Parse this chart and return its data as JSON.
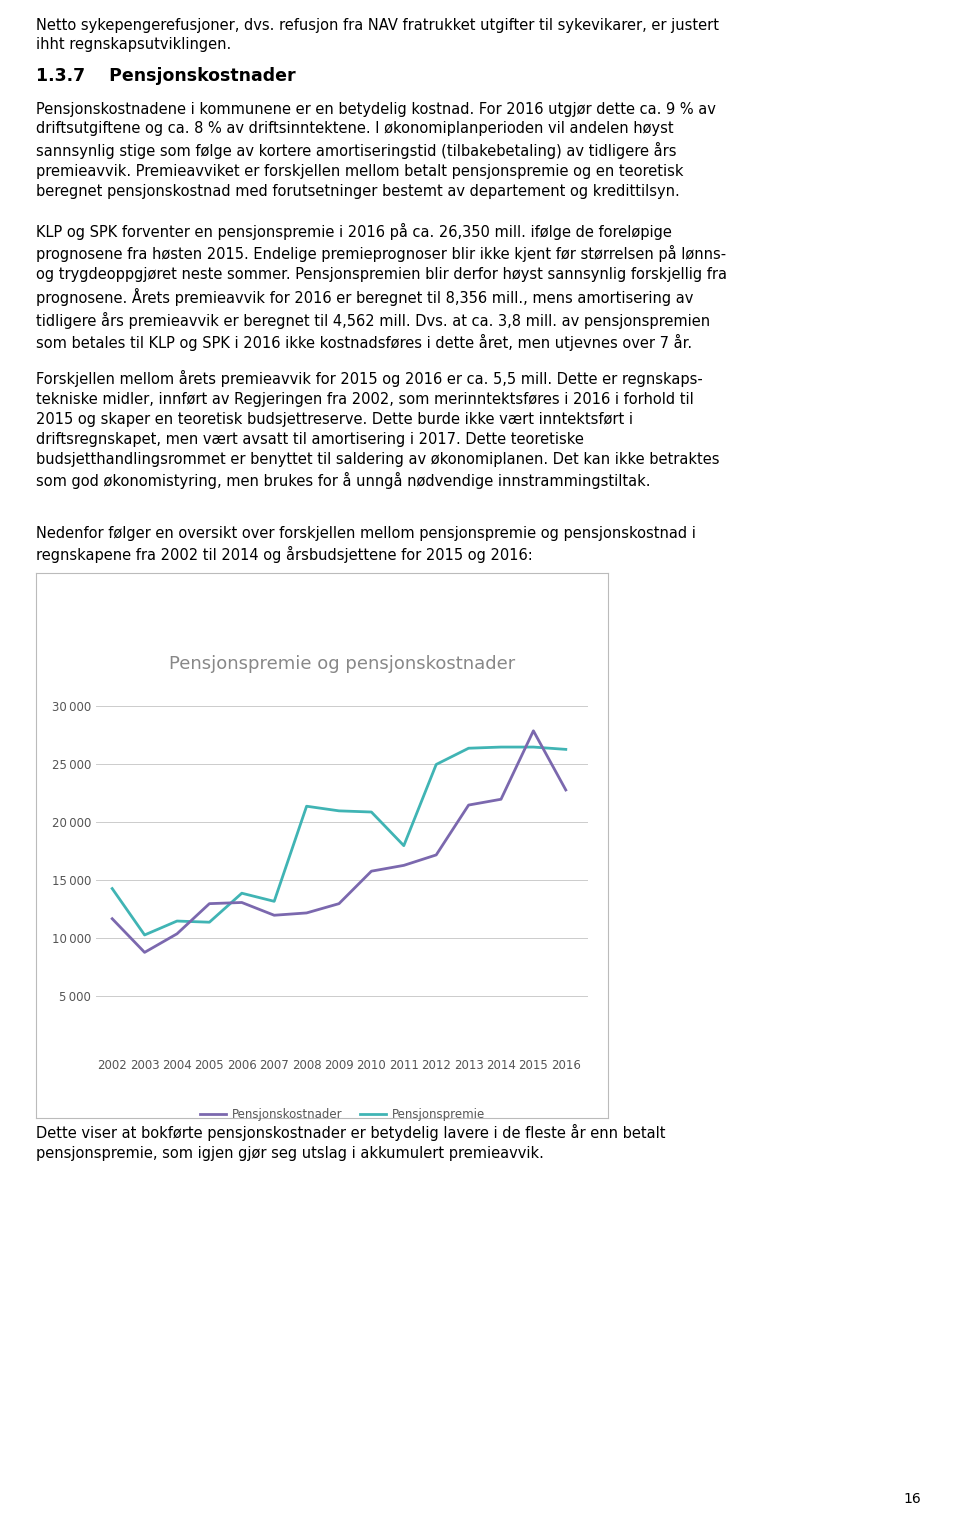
{
  "title": "Pensjonspremie og pensjonskostnader",
  "years": [
    2002,
    2003,
    2004,
    2005,
    2006,
    2007,
    2008,
    2009,
    2010,
    2011,
    2012,
    2013,
    2014,
    2015,
    2016
  ],
  "pensjonskostnader": [
    11700,
    8800,
    10400,
    13000,
    13100,
    12000,
    12200,
    13000,
    15800,
    16300,
    17200,
    21500,
    22000,
    27900,
    22800
  ],
  "pensjonspremie": [
    14300,
    10300,
    11500,
    11400,
    13900,
    13200,
    21400,
    21000,
    20900,
    18000,
    25000,
    26400,
    26500,
    26500,
    26300
  ],
  "pensjonskostnader_color": "#7B68AE",
  "pensjonspremie_color": "#40B4B4",
  "legend_labels": [
    "Pensjonskostnader",
    "Pensjonspremie"
  ],
  "ylim_min": 0,
  "ylim_max": 32000,
  "yticks": [
    5000,
    10000,
    15000,
    20000,
    25000,
    30000
  ],
  "grid_color": "#cccccc",
  "title_color": "#888888",
  "tick_color": "#555555",
  "line_width": 2.0,
  "chart_title_fontsize": 13,
  "tick_fontsize": 8.5,
  "legend_fontsize": 8.5,
  "body_fontsize": 10.5,
  "section_fontsize": 12.5
}
